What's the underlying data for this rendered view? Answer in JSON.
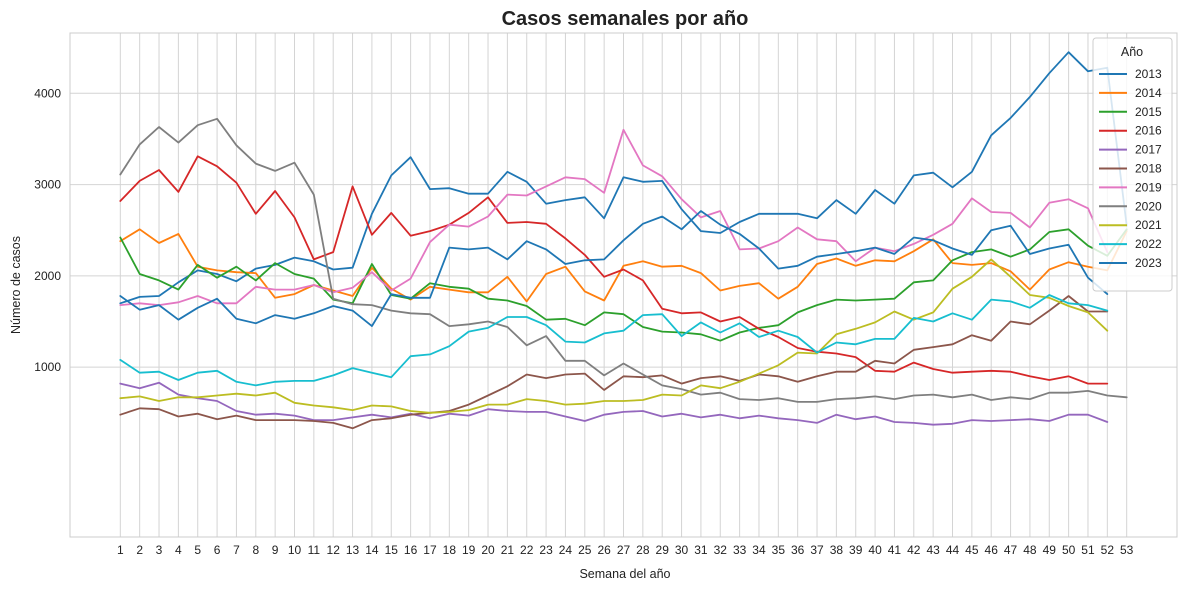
{
  "chart_data": {
    "type": "line",
    "title": "Casos semanales por año",
    "xlabel": "Semana del año",
    "ylabel": "Número de casos",
    "x": [
      1,
      2,
      3,
      4,
      5,
      6,
      7,
      8,
      9,
      10,
      11,
      12,
      13,
      14,
      15,
      16,
      17,
      18,
      19,
      20,
      21,
      22,
      23,
      24,
      25,
      26,
      27,
      28,
      29,
      30,
      31,
      32,
      33,
      34,
      35,
      36,
      37,
      38,
      39,
      40,
      41,
      42,
      43,
      44,
      45,
      46,
      47,
      48,
      49,
      50,
      51,
      52,
      53
    ],
    "xlim": [
      -1.6,
      55.6
    ],
    "ylim": [
      -860,
      4660
    ],
    "yticks": [
      1000,
      2000,
      3000,
      4000
    ],
    "grid": true,
    "legend": {
      "title": "Año",
      "placement": "top-right"
    },
    "series": [
      {
        "name": "2013",
        "color": "#1f77b4",
        "values": [
          1700,
          1770,
          1780,
          1930,
          2060,
          2020,
          1940,
          2080,
          2120,
          2200,
          2160,
          2070,
          2090,
          2680,
          3100,
          3300,
          2950,
          2960,
          2900,
          2900,
          3140,
          3030,
          2790,
          2830,
          2860,
          2630,
          3080,
          3030,
          3040,
          2730,
          2490,
          2470,
          2590,
          2680,
          2680,
          2680,
          2630,
          2830,
          2680,
          2940,
          2790,
          3100,
          3130,
          2970,
          3140,
          3540,
          3730,
          3960,
          4220,
          4450,
          4240,
          4280,
          2550
        ]
      },
      {
        "name": "2014",
        "color": "#ff7f0e",
        "values": [
          2380,
          2510,
          2360,
          2460,
          2100,
          2060,
          2040,
          2030,
          1760,
          1800,
          1900,
          1840,
          1780,
          2090,
          1860,
          1740,
          1880,
          1850,
          1820,
          1820,
          1990,
          1720,
          2020,
          2100,
          1830,
          1730,
          2110,
          2160,
          2100,
          2110,
          2030,
          1840,
          1890,
          1920,
          1750,
          1880,
          2130,
          2190,
          2110,
          2170,
          2160,
          2270,
          2400,
          2140,
          2120,
          2140,
          2050,
          1850,
          2070,
          2150,
          2100,
          2060,
          2490
        ]
      },
      {
        "name": "2015",
        "color": "#2ca02c",
        "values": [
          2420,
          2020,
          1950,
          1850,
          2120,
          1980,
          2100,
          1950,
          2140,
          2020,
          1970,
          1740,
          1700,
          2130,
          1790,
          1750,
          1920,
          1880,
          1860,
          1750,
          1730,
          1670,
          1520,
          1530,
          1460,
          1600,
          1580,
          1440,
          1390,
          1380,
          1360,
          1290,
          1380,
          1430,
          1460,
          1600,
          1680,
          1740,
          1730,
          1740,
          1750,
          1930,
          1950,
          2170,
          2260,
          2290,
          2210,
          2290,
          2480,
          2510,
          2330,
          2220,
          2510
        ]
      },
      {
        "name": "2016",
        "color": "#d62728",
        "values": [
          2820,
          3040,
          3160,
          2920,
          3310,
          3200,
          3020,
          2680,
          2930,
          2640,
          2180,
          2260,
          2980,
          2450,
          2690,
          2440,
          2490,
          2560,
          2690,
          2860,
          2580,
          2590,
          2570,
          2410,
          2230,
          1990,
          2070,
          1950,
          1640,
          1590,
          1600,
          1500,
          1550,
          1420,
          1330,
          1210,
          1170,
          1150,
          1110,
          960,
          950,
          1050,
          980,
          940,
          950,
          960,
          950,
          900,
          860,
          900,
          820,
          820,
          null
        ]
      },
      {
        "name": "2017",
        "color": "#9467bd",
        "values": [
          820,
          770,
          830,
          700,
          660,
          630,
          520,
          480,
          490,
          470,
          420,
          420,
          450,
          480,
          450,
          490,
          440,
          490,
          470,
          540,
          520,
          510,
          510,
          460,
          410,
          480,
          510,
          520,
          460,
          490,
          450,
          480,
          440,
          470,
          440,
          420,
          390,
          480,
          430,
          460,
          400,
          390,
          370,
          380,
          420,
          410,
          420,
          430,
          410,
          480,
          480,
          400,
          null
        ]
      },
      {
        "name": "2018",
        "color": "#8c564b",
        "values": [
          480,
          550,
          540,
          460,
          490,
          430,
          470,
          420,
          420,
          420,
          410,
          390,
          330,
          420,
          440,
          480,
          500,
          520,
          590,
          690,
          790,
          920,
          880,
          920,
          930,
          750,
          900,
          890,
          910,
          820,
          880,
          900,
          850,
          920,
          900,
          840,
          900,
          950,
          950,
          1070,
          1040,
          1190,
          1220,
          1250,
          1350,
          1290,
          1500,
          1470,
          1620,
          1780,
          1610,
          1610,
          null
        ]
      },
      {
        "name": "2019",
        "color": "#e377c2",
        "values": [
          1680,
          1700,
          1680,
          1710,
          1780,
          1700,
          1700,
          1880,
          1850,
          1850,
          1900,
          1820,
          1870,
          2040,
          1840,
          1970,
          2370,
          2560,
          2540,
          2650,
          2890,
          2880,
          2980,
          3080,
          3060,
          2910,
          3600,
          3210,
          3090,
          2840,
          2640,
          2710,
          2290,
          2300,
          2380,
          2530,
          2400,
          2380,
          2160,
          2310,
          2270,
          2350,
          2450,
          2570,
          2850,
          2700,
          2690,
          2530,
          2800,
          2840,
          2740,
          2260,
          null
        ]
      },
      {
        "name": "2020",
        "color": "#7f7f7f",
        "values": [
          3110,
          3440,
          3630,
          3460,
          3650,
          3720,
          3430,
          3230,
          3150,
          3240,
          2890,
          1750,
          1690,
          1680,
          1620,
          1590,
          1580,
          1450,
          1470,
          1500,
          1440,
          1240,
          1340,
          1070,
          1070,
          910,
          1040,
          920,
          800,
          760,
          700,
          720,
          650,
          640,
          660,
          620,
          620,
          650,
          660,
          680,
          650,
          690,
          700,
          670,
          700,
          640,
          670,
          650,
          720,
          720,
          740,
          690,
          670
        ]
      },
      {
        "name": "2021",
        "color": "#bcbd22",
        "values": [
          660,
          680,
          630,
          670,
          670,
          690,
          710,
          690,
          720,
          610,
          580,
          560,
          530,
          580,
          570,
          520,
          500,
          510,
          530,
          590,
          590,
          650,
          630,
          590,
          600,
          630,
          630,
          640,
          700,
          690,
          800,
          770,
          840,
          930,
          1020,
          1160,
          1150,
          1360,
          1420,
          1490,
          1610,
          1520,
          1600,
          1860,
          1990,
          2180,
          1990,
          1790,
          1760,
          1670,
          1600,
          1400,
          null
        ]
      },
      {
        "name": "2022",
        "color": "#17becf",
        "values": [
          1080,
          940,
          950,
          860,
          940,
          960,
          840,
          800,
          840,
          850,
          850,
          910,
          990,
          940,
          890,
          1120,
          1140,
          1230,
          1390,
          1430,
          1550,
          1550,
          1460,
          1280,
          1270,
          1370,
          1400,
          1570,
          1580,
          1340,
          1490,
          1380,
          1480,
          1330,
          1400,
          1330,
          1160,
          1270,
          1250,
          1310,
          1310,
          1540,
          1500,
          1590,
          1520,
          1740,
          1720,
          1650,
          1790,
          1700,
          1680,
          1620,
          null
        ]
      },
      {
        "name": "2023",
        "color": "#1f77b4",
        "values": [
          1780,
          1630,
          1680,
          1520,
          1650,
          1750,
          1530,
          1480,
          1570,
          1530,
          1590,
          1670,
          1620,
          1450,
          1800,
          1760,
          1760,
          2310,
          2290,
          2310,
          2180,
          2380,
          2290,
          2130,
          2170,
          2180,
          2390,
          2570,
          2650,
          2510,
          2710,
          2560,
          2460,
          2300,
          2080,
          2110,
          2210,
          2240,
          2270,
          2310,
          2240,
          2420,
          2390,
          2300,
          2230,
          2500,
          2550,
          2240,
          2300,
          2340,
          1980,
          1800,
          null
        ]
      }
    ]
  }
}
